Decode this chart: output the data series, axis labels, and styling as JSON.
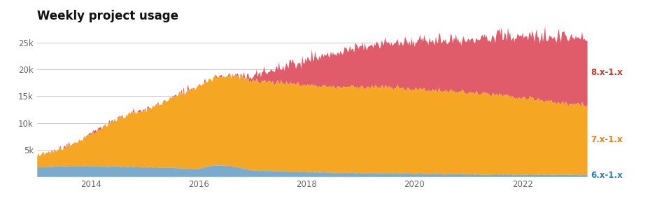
{
  "title": "Weekly project usage",
  "title_fontsize": 12,
  "title_fontweight": "bold",
  "title_color": "#111111",
  "background_color": "#ffffff",
  "grid_color": "#cccccc",
  "ylim": [
    0,
    28000
  ],
  "yticks": [
    5000,
    10000,
    15000,
    20000,
    25000
  ],
  "ytick_labels": [
    "5k",
    "10k",
    "15k",
    "20k",
    "25k"
  ],
  "x_start_year": 2013.0,
  "x_end_year": 2023.2,
  "xtick_years": [
    2014,
    2016,
    2018,
    2020,
    2022
  ],
  "legend_labels": [
    "8.x-1.x",
    "7.x-1.x",
    "6.x-1.x"
  ],
  "legend_label_colors_8x": "#c0392b",
  "legend_label_colors_7x": "#e67e22",
  "legend_label_colors_6x": "#2980b9",
  "color_6x": "#7aabce",
  "color_7x": "#f5a623",
  "color_8x": "#e05c6a",
  "n_points": 520
}
